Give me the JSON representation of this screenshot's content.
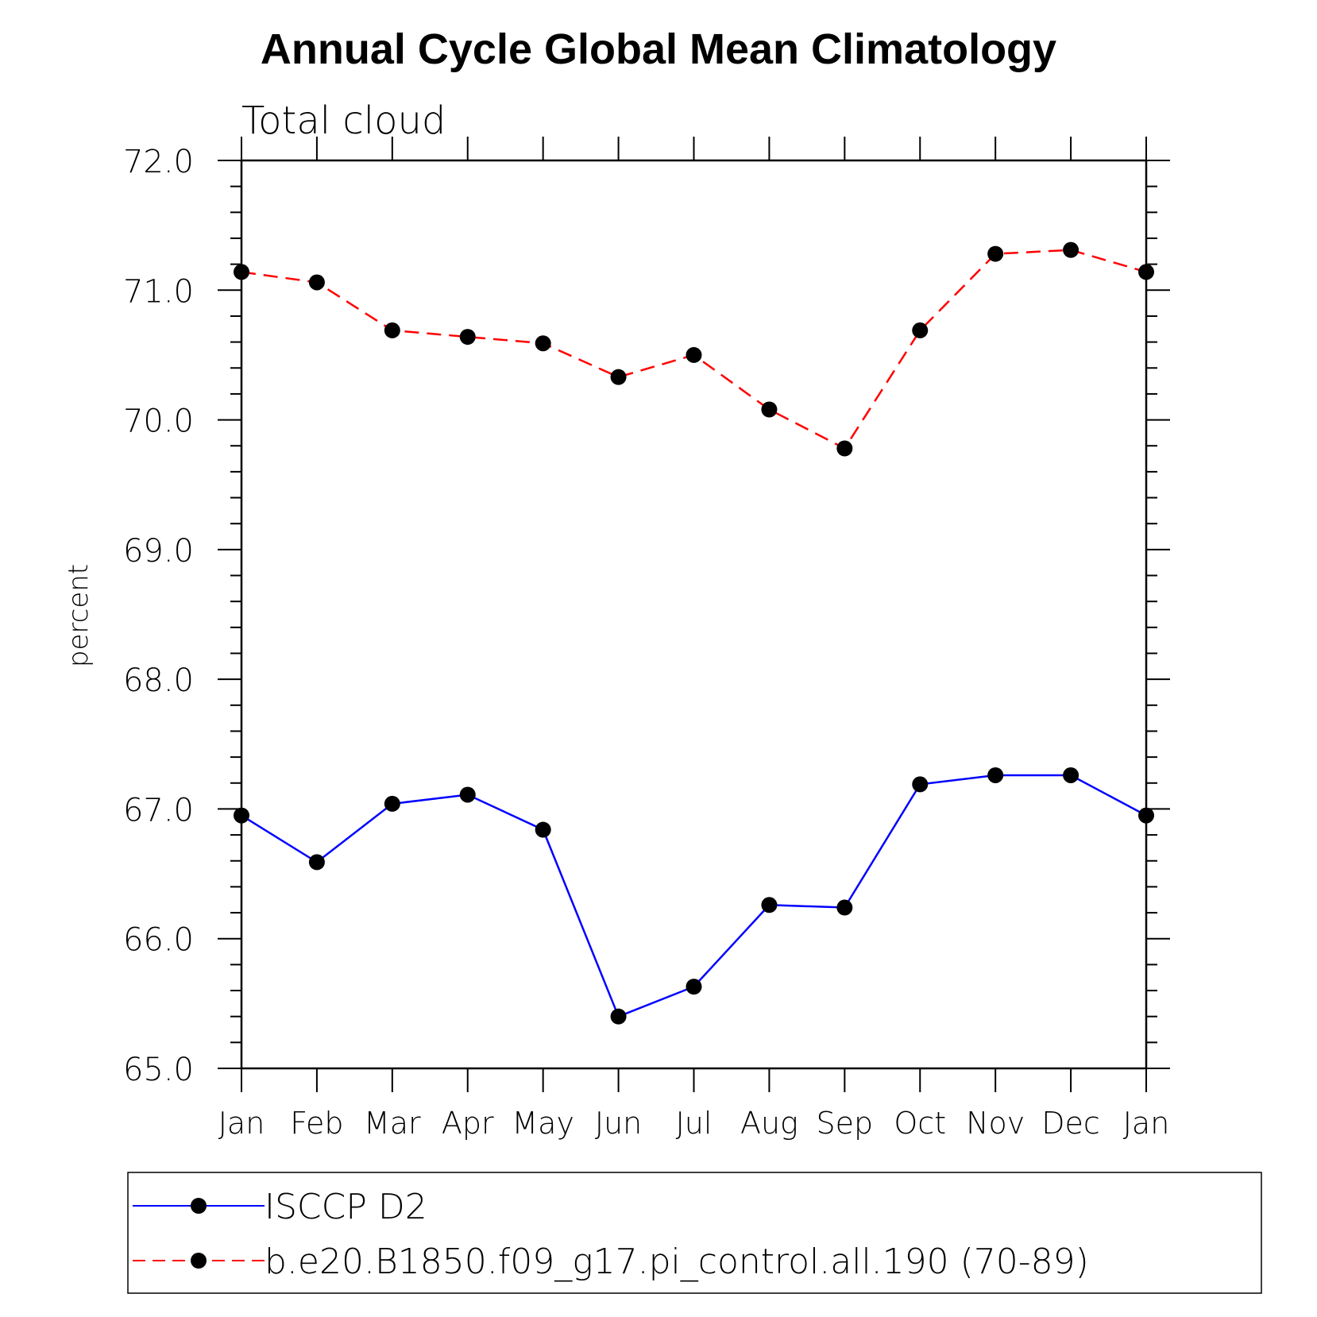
{
  "chart_data": {
    "type": "line",
    "title": "Annual Cycle Global Mean Climatology",
    "subtitle": "Total cloud",
    "xlabel": "",
    "ylabel": "percent",
    "ylim": [
      65.0,
      72.0
    ],
    "yticks": [
      "65.0",
      "66.0",
      "67.0",
      "68.0",
      "69.0",
      "70.0",
      "71.0",
      "72.0"
    ],
    "categories": [
      "Jan",
      "Feb",
      "Mar",
      "Apr",
      "May",
      "Jun",
      "Jul",
      "Aug",
      "Sep",
      "Oct",
      "Nov",
      "Dec",
      "Jan"
    ],
    "grid": false,
    "legend_position": "bottom",
    "series": [
      {
        "name": "ISCCP D2",
        "color": "#0000ff",
        "line_style": "solid",
        "marker": "circle",
        "values": [
          66.95,
          66.59,
          67.04,
          67.11,
          66.84,
          65.4,
          65.63,
          66.26,
          66.24,
          67.19,
          67.26,
          67.26,
          66.95
        ]
      },
      {
        "name": "b.e20.B1850.f09_g17.pi_control.all.190 (70-89)",
        "color": "#ff0000",
        "line_style": "dashed",
        "marker": "circle",
        "values": [
          71.14,
          71.06,
          70.69,
          70.64,
          70.59,
          70.33,
          70.5,
          70.08,
          69.78,
          70.69,
          71.28,
          71.31,
          71.14
        ]
      }
    ]
  }
}
